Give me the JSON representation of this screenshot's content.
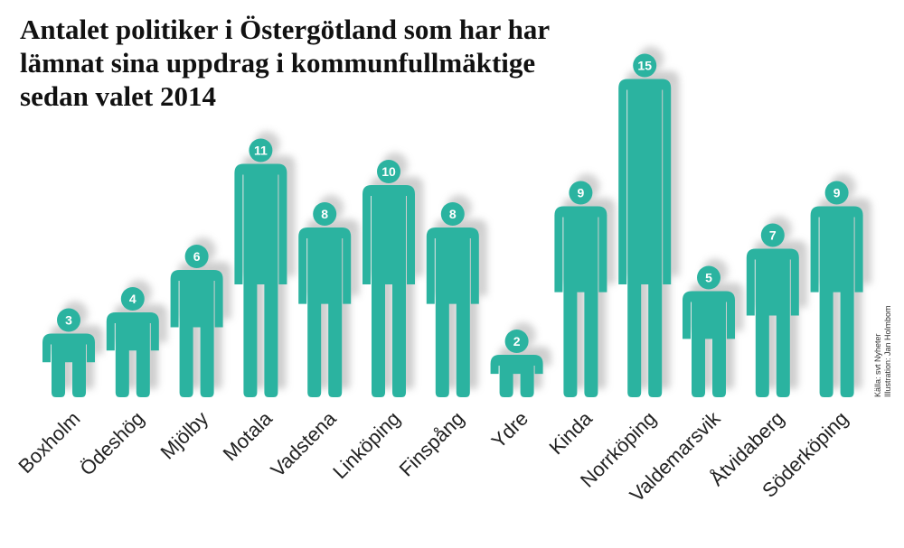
{
  "title": "Antalet politiker i Östergötland som har har lämnat sina uppdrag i kommunfullmäktige sedan valet 2014",
  "source": {
    "line1": "Källa: svt Nyheter",
    "line2": "Illustration: Jan Holmbom"
  },
  "colors": {
    "figure": "#2bb3a0",
    "badge": "#2bb3a0",
    "badge_text": "#ffffff",
    "shadow": "#bdbdbd",
    "label": "#222222"
  },
  "chart_data": {
    "type": "bar",
    "title": "Antalet politiker i Östergötland som har har lämnat sina uppdrag i kommunfullmäktige sedan valet 2014",
    "categories": [
      "Boxholm",
      "Ödeshög",
      "Mjölby",
      "Motala",
      "Vadstena",
      "Linköping",
      "Finspång",
      "Ydre",
      "Kinda",
      "Norrköping",
      "Valdemarsvik",
      "Åtvidaberg",
      "Söderköping"
    ],
    "values": [
      3,
      4,
      6,
      11,
      8,
      10,
      8,
      2,
      9,
      15,
      5,
      7,
      9
    ],
    "ylim": [
      0,
      15
    ],
    "grid": false,
    "legend": "none"
  }
}
